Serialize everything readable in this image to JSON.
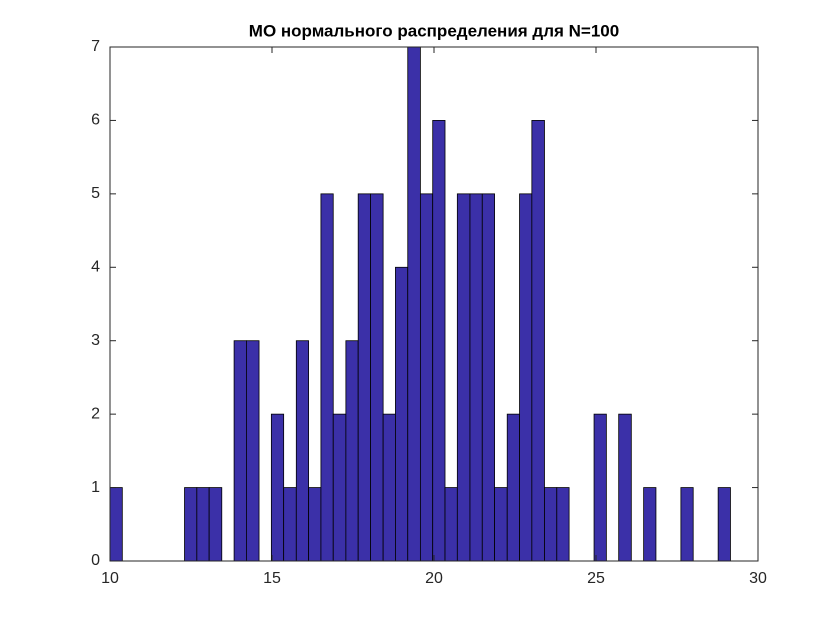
{
  "chart_data": {
    "type": "histogram",
    "title": "МО нормального распределения для N=100",
    "bins": [
      10,
      10.38,
      10.77,
      11.15,
      11.53,
      11.92,
      12.3,
      12.68,
      13.06,
      13.45,
      13.83,
      14.21,
      14.6,
      14.98,
      15.36,
      15.75,
      16.13,
      16.51,
      16.89,
      17.28,
      17.66,
      18.04,
      18.43,
      18.81,
      19.19,
      19.58,
      19.96,
      20.34,
      20.72,
      21.11,
      21.49,
      21.87,
      22.26,
      22.64,
      23.02,
      23.41,
      23.79,
      24.17,
      24.55,
      24.94,
      25.32,
      25.7,
      26.09,
      26.47,
      26.85,
      27.24,
      27.62,
      28.0,
      28.38,
      28.77,
      29.15
    ],
    "counts": [
      1,
      0,
      0,
      0,
      0,
      0,
      1,
      1,
      1,
      0,
      3,
      3,
      0,
      2,
      1,
      3,
      1,
      5,
      2,
      3,
      5,
      5,
      2,
      4,
      7,
      5,
      6,
      1,
      5,
      5,
      5,
      1,
      2,
      5,
      6,
      1,
      1,
      0,
      0,
      2,
      0,
      2,
      0,
      1,
      0,
      0,
      1,
      0,
      0,
      1
    ],
    "color": "#3b30a8",
    "xlim": [
      10,
      30
    ],
    "xticks": [
      10,
      15,
      20,
      25,
      30
    ],
    "ylim": [
      0,
      7
    ],
    "yticks": [
      0,
      1,
      2,
      3,
      4,
      5,
      6,
      7
    ],
    "grid": false
  }
}
